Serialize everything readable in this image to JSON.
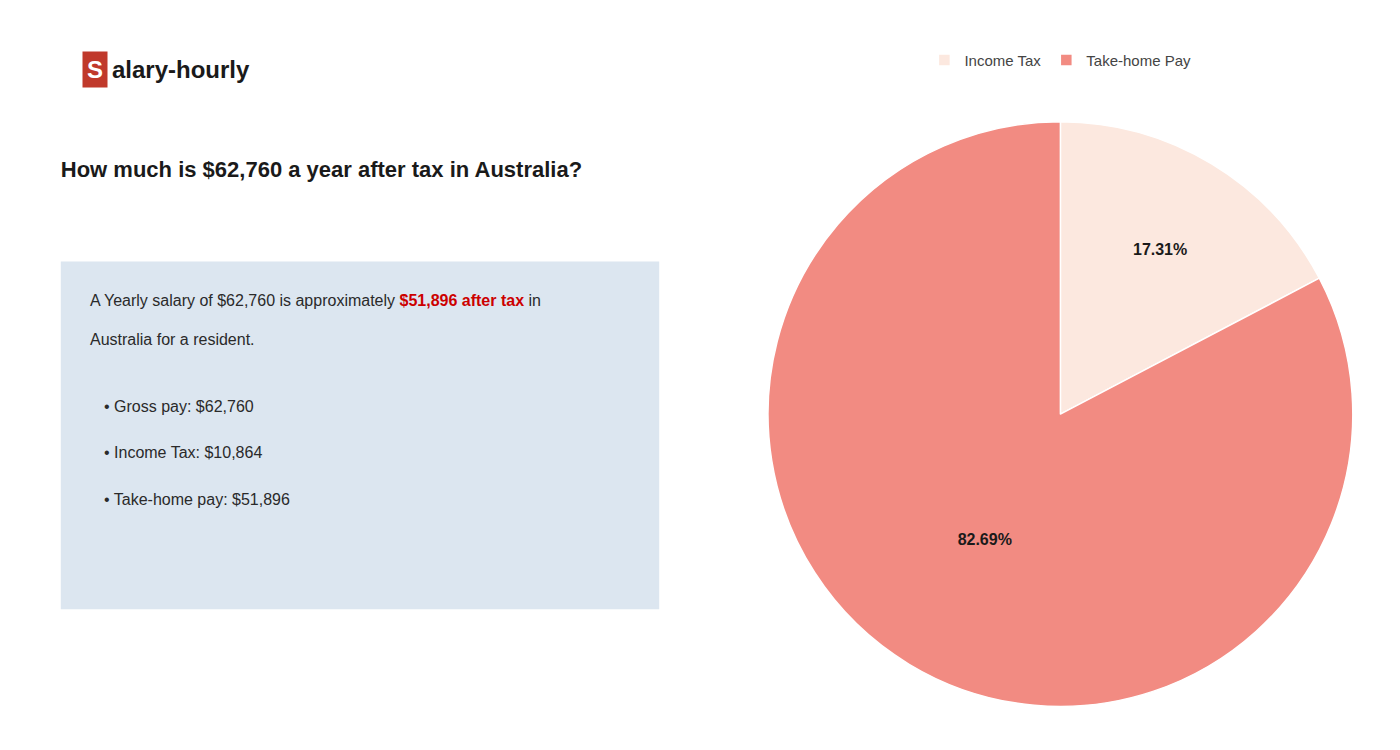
{
  "chart_data": {
    "type": "pie",
    "title": "How much is $62,760 a year after tax in Australia?",
    "categories": [
      "Income Tax",
      "Take-home Pay"
    ],
    "values": [
      17.31,
      82.69
    ],
    "value_labels": [
      "17.31%",
      "82.69%"
    ],
    "colors": [
      "#fce8df",
      "#f28b82"
    ],
    "data_labels": true,
    "legend": "top",
    "annotations": [
      "Salary-hourly",
      "A Yearly salary of $62,760 is approximately ",
      "$51,896 after tax",
      " in",
      "Australia for a resident.",
      "• Gross pay: $62,760",
      "• Income Tax: $10,864",
      "• Take-home pay: $51,896"
    ]
  }
}
